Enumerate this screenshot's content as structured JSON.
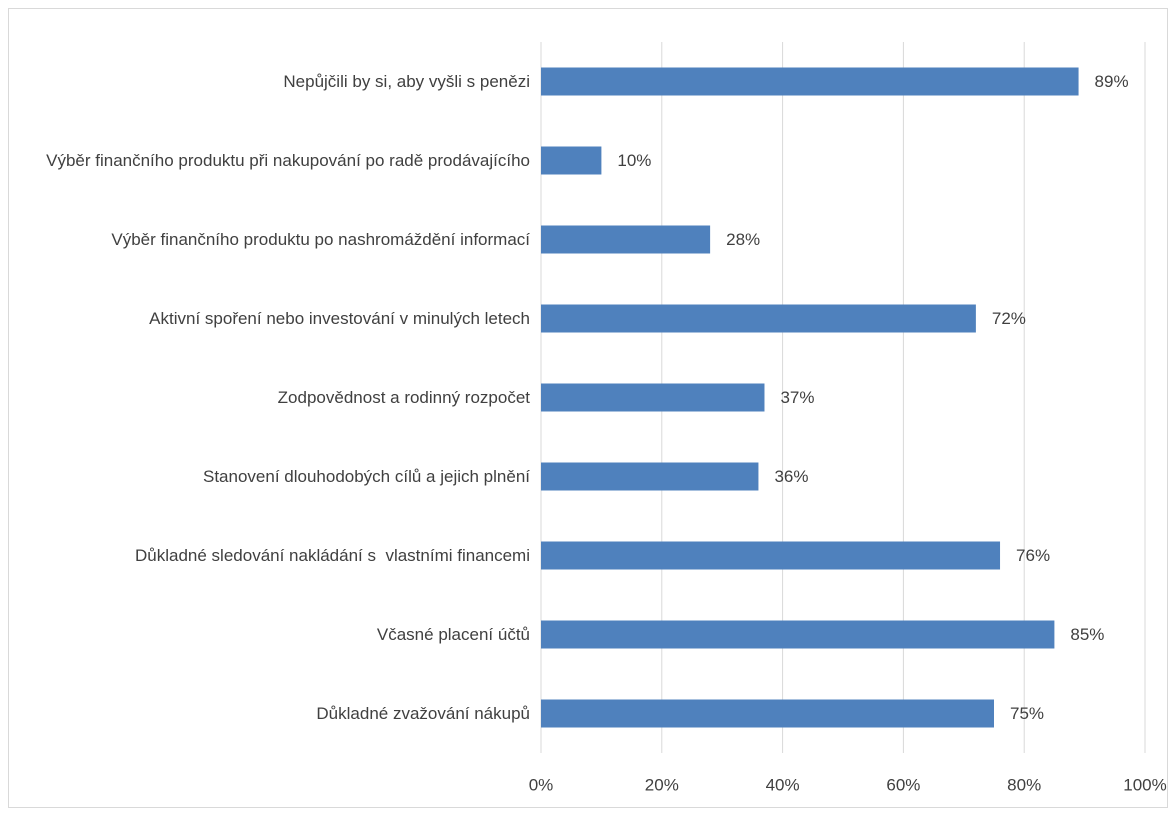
{
  "chart_data": {
    "type": "bar",
    "orientation": "horizontal",
    "categories": [
      "Nepůjčili by si, aby vyšli s penězi",
      "Výběr finančního produktu při nakupování po radě prodávajícího",
      "Výběr finančního produktu po nashromáždění informací",
      "Aktivní spoření nebo investování v minulých letech",
      "Zodpovědnost a rodinný rozpočet",
      "Stanovení dlouhodobých cílů a jejich plnění",
      "Důkladné sledování nakládání s  vlastními financemi",
      "Včasné placení účtů",
      "Důkladné zvažování nákupů"
    ],
    "values": [
      89,
      10,
      28,
      72,
      37,
      36,
      76,
      85,
      75
    ],
    "value_labels": [
      "89%",
      "10%",
      "28%",
      "72%",
      "37%",
      "36%",
      "76%",
      "85%",
      "75%"
    ],
    "color": "#4f81bd",
    "xlim": [
      0,
      100
    ],
    "xticks": [
      {
        "value": 0,
        "label": "0%"
      },
      {
        "value": 20,
        "label": "20%"
      },
      {
        "value": 40,
        "label": "40%"
      },
      {
        "value": 60,
        "label": "60%"
      },
      {
        "value": 80,
        "label": "80%"
      },
      {
        "value": 100,
        "label": "100%"
      }
    ],
    "grid": true
  }
}
